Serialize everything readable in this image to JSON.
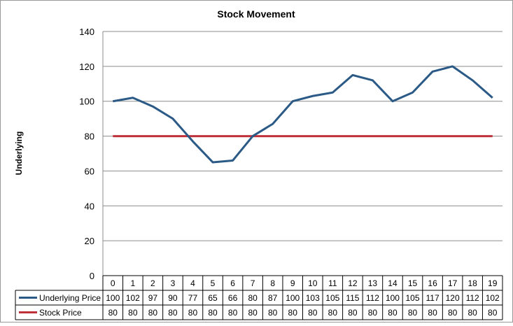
{
  "chart_data": {
    "type": "line",
    "title": "Stock Movement",
    "xlabel": "",
    "ylabel": "Underlying",
    "categories": [
      "0",
      "1",
      "2",
      "3",
      "4",
      "5",
      "6",
      "7",
      "8",
      "9",
      "10",
      "11",
      "12",
      "13",
      "14",
      "15",
      "16",
      "17",
      "18",
      "19"
    ],
    "ylim": [
      0,
      140
    ],
    "yticks": [
      0,
      20,
      40,
      60,
      80,
      100,
      120,
      140
    ],
    "grid": true,
    "legend": "data-table-bottom",
    "series": [
      {
        "name": "Underlying Price",
        "color": "#2b5a87",
        "values": [
          100,
          102,
          97,
          90,
          77,
          65,
          66,
          80,
          87,
          100,
          103,
          105,
          115,
          112,
          100,
          105,
          117,
          120,
          112,
          102
        ]
      },
      {
        "name": "Stock Price",
        "color": "#c0323b",
        "values": [
          80,
          80,
          80,
          80,
          80,
          80,
          80,
          80,
          80,
          80,
          80,
          80,
          80,
          80,
          80,
          80,
          80,
          80,
          80,
          80
        ]
      }
    ]
  }
}
